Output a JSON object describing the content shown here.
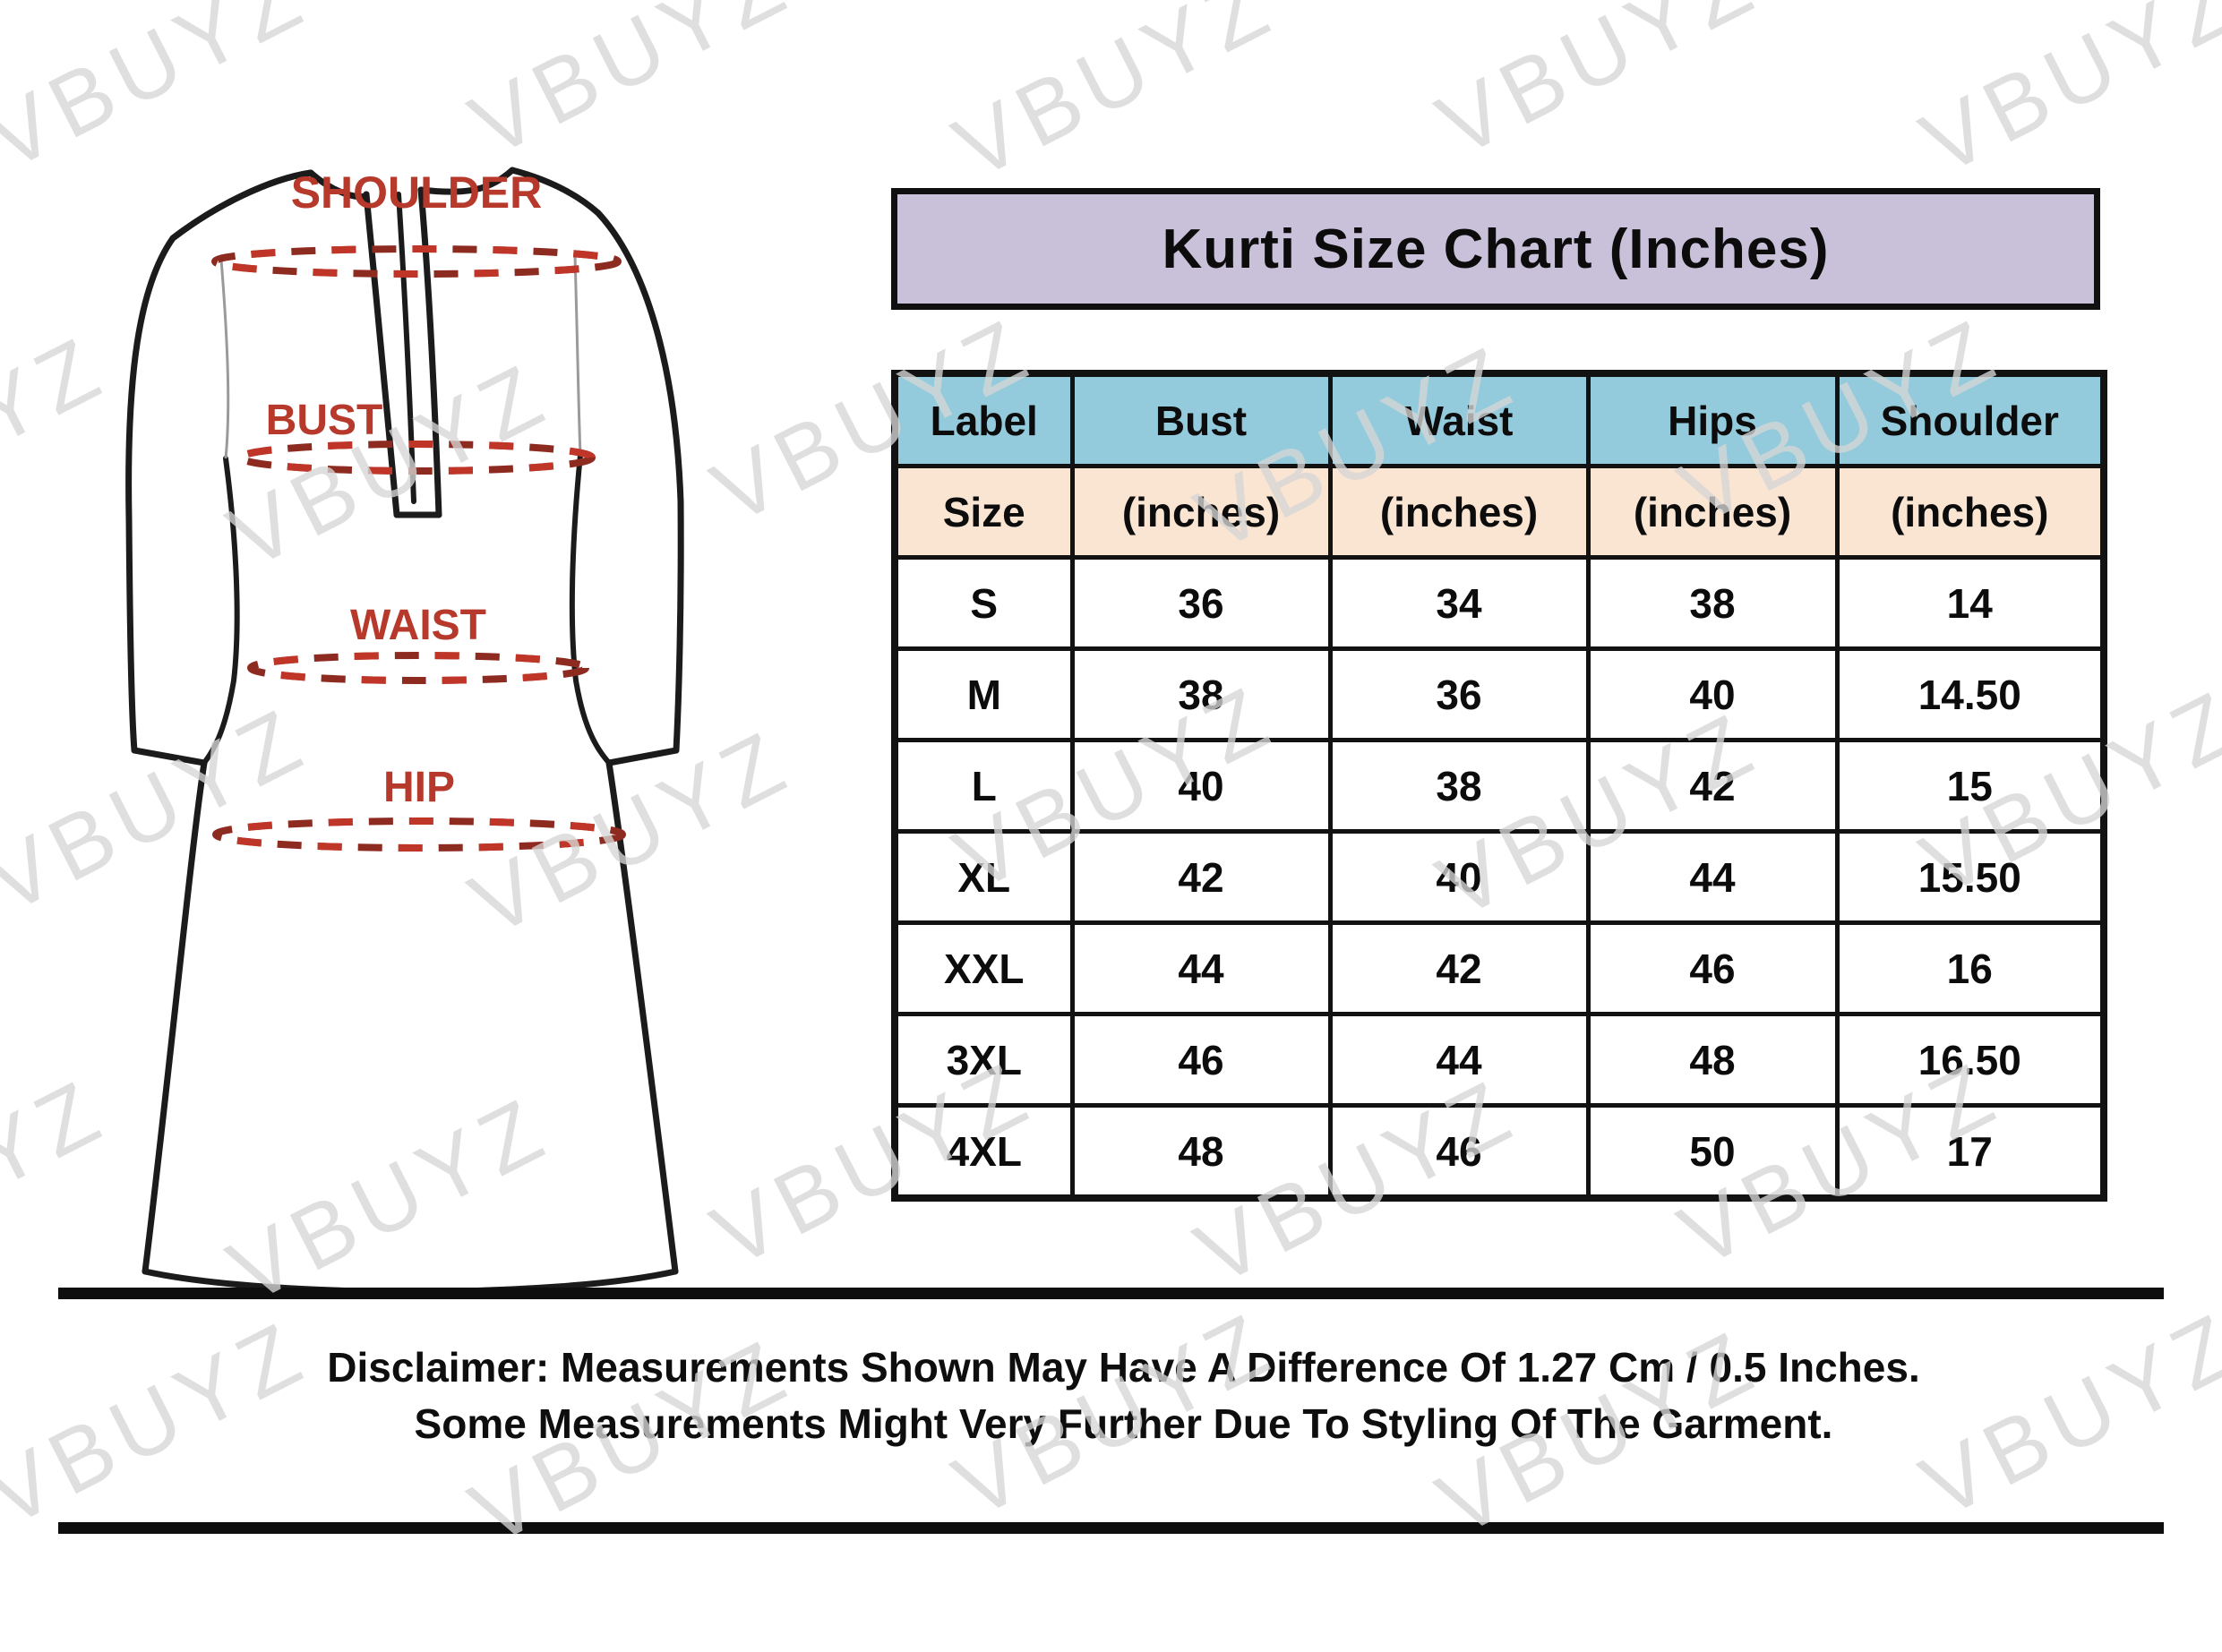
{
  "title": {
    "text": "Kurti Size Chart (Inches)"
  },
  "watermark": {
    "text": "VBUYZ"
  },
  "diagram": {
    "labels": {
      "shoulder": "SHOULDER",
      "bust": "BUST",
      "waist": "WAIST",
      "hip": "HIP"
    }
  },
  "table": {
    "columns": [
      "Label",
      "Bust",
      "Waist",
      "Hips",
      "Shoulder"
    ],
    "subheader": [
      "Size",
      "(inches)",
      "(inches)",
      "(inches)",
      "(inches)"
    ],
    "rows": [
      [
        "S",
        "36",
        "34",
        "38",
        "14"
      ],
      [
        "M",
        "38",
        "36",
        "40",
        "14.50"
      ],
      [
        "L",
        "40",
        "38",
        "42",
        "15"
      ],
      [
        "XL",
        "42",
        "40",
        "44",
        "15.50"
      ],
      [
        "XXL",
        "44",
        "42",
        "46",
        "16"
      ],
      [
        "3XL",
        "46",
        "44",
        "48",
        "16.50"
      ],
      [
        "4XL",
        "48",
        "46",
        "50",
        "17"
      ]
    ]
  },
  "disclaimer": {
    "line1": "Disclaimer: Measurements Shown May Have A Difference Of 1.27 Cm / 0.5 Inches.",
    "line2": "Some Measurements Might Very Further Due To Styling Of The Garment."
  },
  "colors": {
    "banner_bg": "#C9C0D9",
    "header_bg": "#93CBDC",
    "subheader_bg": "#FAE5D3",
    "row_bg": "#FFFFFF",
    "border": "#121212",
    "label_red": "#B6392B",
    "dash_red": "#C4372A",
    "dash_dark": "#8E2B20",
    "outline_black": "#1B1B1B"
  }
}
